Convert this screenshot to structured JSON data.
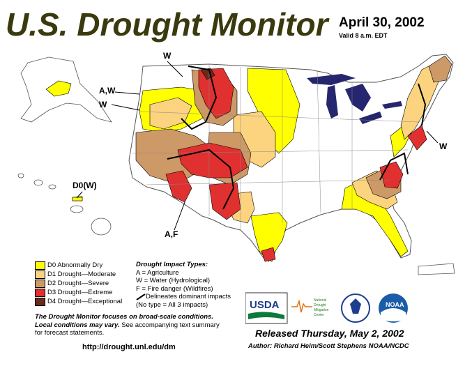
{
  "header": {
    "title": "U.S. Drought Monitor",
    "date": "April 30, 2002",
    "valid": "Valid 8 a.m. EDT"
  },
  "map_labels": {
    "w_top": "W",
    "aw": "A,W",
    "w_west": "W",
    "d0w_hawaii": "D0(W)",
    "af": "A,F",
    "w_east": "W"
  },
  "legend": {
    "items": [
      {
        "code": "D0",
        "label": "D0 Abnormally Dry",
        "color": "#ffff00"
      },
      {
        "code": "D1",
        "label": "D1 Drought—Moderate",
        "color": "#fcd37f"
      },
      {
        "code": "D2",
        "label": "D2 Drought—Severe",
        "color": "#cd9966"
      },
      {
        "code": "D3",
        "label": "D3 Drought—Extreme",
        "color": "#e03030"
      },
      {
        "code": "D4",
        "label": "D4 Drought—Exceptional",
        "color": "#6b2b1a"
      }
    ]
  },
  "impact_types": {
    "title": "Drought  Impact  Types:",
    "a": "A = Agriculture",
    "w": "W = Water (Hydrological)",
    "f": "F = Fire danger (Wildfires)",
    "delineates": "Delineates dominant impacts",
    "note": "(No type = All 3 impacts)"
  },
  "focus": {
    "line1": "The Drought Monitor focuses on broad-scale conditions.",
    "line2_bold": "Local conditions may vary.",
    "line2_rest": " See accompanying text summary",
    "line3": "for forecast statements."
  },
  "footer": {
    "url": "http://drought.unl.edu/dm",
    "released": "Released Thursday, May 2, 2002",
    "author": "Author:  Richard Heim/Scott Stephens NOAA/NCDC"
  },
  "logos": {
    "usda": "USDA",
    "ndmc_line1": "National",
    "ndmc_line2": "Drought",
    "ndmc_line3": "Mitigation",
    "ndmc_line4": "Center",
    "noaa": "NOAA"
  },
  "colors": {
    "lakes": "#26266e",
    "state_border": "#888888",
    "background": "#ffffff"
  }
}
